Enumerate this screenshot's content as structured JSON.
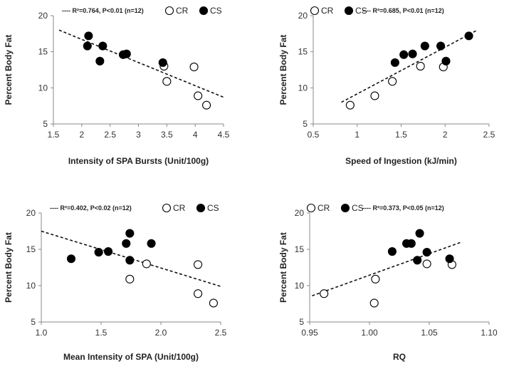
{
  "chart_data": [
    {
      "type": "scatter",
      "xlabel": "Intensity of SPA Bursts (Unit/100g)",
      "ylabel": "Percent Body Fat",
      "xlim": [
        1.5,
        4.5
      ],
      "ylim": [
        5,
        20
      ],
      "xticks": [
        1.5,
        2.0,
        2.5,
        3.0,
        3.5,
        4.0,
        4.5
      ],
      "xtick_labels": [
        "1.5",
        "2",
        "2.5",
        "3",
        "3.5",
        "4",
        "4.5"
      ],
      "yticks": [
        5,
        10,
        15,
        20
      ],
      "ytick_labels": [
        "5",
        "10",
        "15",
        "20"
      ],
      "stat_text": "---- R²=0.764, P<0.01 (n=12)",
      "stat_position": "top-left",
      "legend_position": "top-right",
      "series": [
        {
          "name": "CR",
          "marker": "open",
          "points": [
            [
              3.45,
              13.0
            ],
            [
              3.5,
              10.9
            ],
            [
              3.98,
              12.9
            ],
            [
              4.05,
              8.9
            ],
            [
              4.2,
              7.6
            ]
          ]
        },
        {
          "name": "CS",
          "marker": "filled",
          "points": [
            [
              2.12,
              17.2
            ],
            [
              2.1,
              15.8
            ],
            [
              2.37,
              15.8
            ],
            [
              2.32,
              13.7
            ],
            [
              2.73,
              14.6
            ],
            [
              2.79,
              14.7
            ],
            [
              3.43,
              13.5
            ]
          ]
        }
      ],
      "trendline": [
        [
          1.6,
          18.0
        ],
        [
          4.5,
          8.7
        ]
      ]
    },
    {
      "type": "scatter",
      "xlabel": "Speed of Ingestion (kJ/min)",
      "ylabel": "Percent Body Fat",
      "xlim": [
        0.5,
        2.5
      ],
      "ylim": [
        5,
        20
      ],
      "xticks": [
        0.5,
        1.0,
        1.5,
        2.0,
        2.5
      ],
      "xtick_labels": [
        "0.5",
        "1",
        "1.5",
        "2",
        "2.5"
      ],
      "yticks": [
        5,
        10,
        15,
        20
      ],
      "ytick_labels": [
        "5",
        "10",
        "15",
        "20"
      ],
      "stat_text": "---- R²=0.685, P<0.01 (n=12)",
      "stat_position": "top-right",
      "legend_position": "top-left",
      "series": [
        {
          "name": "CR",
          "marker": "open",
          "points": [
            [
              0.92,
              7.6
            ],
            [
              1.2,
              8.9
            ],
            [
              1.4,
              10.9
            ],
            [
              1.72,
              13.0
            ],
            [
              1.98,
              12.9
            ]
          ]
        },
        {
          "name": "CS",
          "marker": "filled",
          "points": [
            [
              1.43,
              13.5
            ],
            [
              1.53,
              14.6
            ],
            [
              1.63,
              14.7
            ],
            [
              1.77,
              15.8
            ],
            [
              1.95,
              15.8
            ],
            [
              2.01,
              13.7
            ],
            [
              2.27,
              17.2
            ]
          ]
        }
      ],
      "trendline": [
        [
          0.82,
          8.0
        ],
        [
          2.35,
          17.9
        ]
      ]
    },
    {
      "type": "scatter",
      "xlabel": "Mean Intensity of SPA (Unit/100g)",
      "ylabel": "Percent Body Fat",
      "xlim": [
        1.0,
        2.5
      ],
      "ylim": [
        5,
        20
      ],
      "xticks": [
        1.0,
        1.5,
        2.0,
        2.5
      ],
      "xtick_labels": [
        "1.0",
        "1.5",
        "2.0",
        "2.5"
      ],
      "yticks": [
        5,
        10,
        15,
        20
      ],
      "ytick_labels": [
        "5",
        "10",
        "15",
        "20"
      ],
      "stat_text": "---- R²=0.402, P<0.02 (n=12)",
      "stat_position": "top-left",
      "legend_position": "top-right",
      "series": [
        {
          "name": "CR",
          "marker": "open",
          "points": [
            [
              1.74,
              10.9
            ],
            [
              1.88,
              13.0
            ],
            [
              2.31,
              12.9
            ],
            [
              2.31,
              8.9
            ],
            [
              2.44,
              7.6
            ]
          ]
        },
        {
          "name": "CS",
          "marker": "filled",
          "points": [
            [
              1.25,
              13.7
            ],
            [
              1.48,
              14.6
            ],
            [
              1.56,
              14.7
            ],
            [
              1.71,
              15.8
            ],
            [
              1.74,
              17.2
            ],
            [
              1.74,
              13.5
            ],
            [
              1.92,
              15.8
            ]
          ]
        }
      ],
      "trendline": [
        [
          1.0,
          17.5
        ],
        [
          2.5,
          9.9
        ]
      ]
    },
    {
      "type": "scatter",
      "xlabel": "RQ",
      "ylabel": "Percent Body Fat",
      "xlim": [
        0.95,
        1.1
      ],
      "ylim": [
        5,
        20
      ],
      "xticks": [
        0.95,
        1.0,
        1.05,
        1.1
      ],
      "xtick_labels": [
        "0.95",
        "1.00",
        "1.05",
        "1.10"
      ],
      "yticks": [
        5,
        10,
        15,
        20
      ],
      "ytick_labels": [
        "5",
        "10",
        "15",
        "20"
      ],
      "stat_text": "---- R²=0.373, P<0.05 (n=12)",
      "stat_position": "top-right",
      "legend_position": "top-left",
      "series": [
        {
          "name": "CR",
          "marker": "open",
          "points": [
            [
              0.962,
              8.9
            ],
            [
              1.004,
              7.6
            ],
            [
              1.005,
              10.9
            ],
            [
              1.048,
              13.0
            ],
            [
              1.069,
              12.9
            ]
          ]
        },
        {
          "name": "CS",
          "marker": "filled",
          "points": [
            [
              1.019,
              14.7
            ],
            [
              1.031,
              15.8
            ],
            [
              1.035,
              15.8
            ],
            [
              1.04,
              13.5
            ],
            [
              1.042,
              17.2
            ],
            [
              1.048,
              14.6
            ],
            [
              1.067,
              13.7
            ]
          ]
        }
      ],
      "trendline": [
        [
          0.952,
          8.6
        ],
        [
          1.077,
          16.0
        ]
      ]
    }
  ]
}
